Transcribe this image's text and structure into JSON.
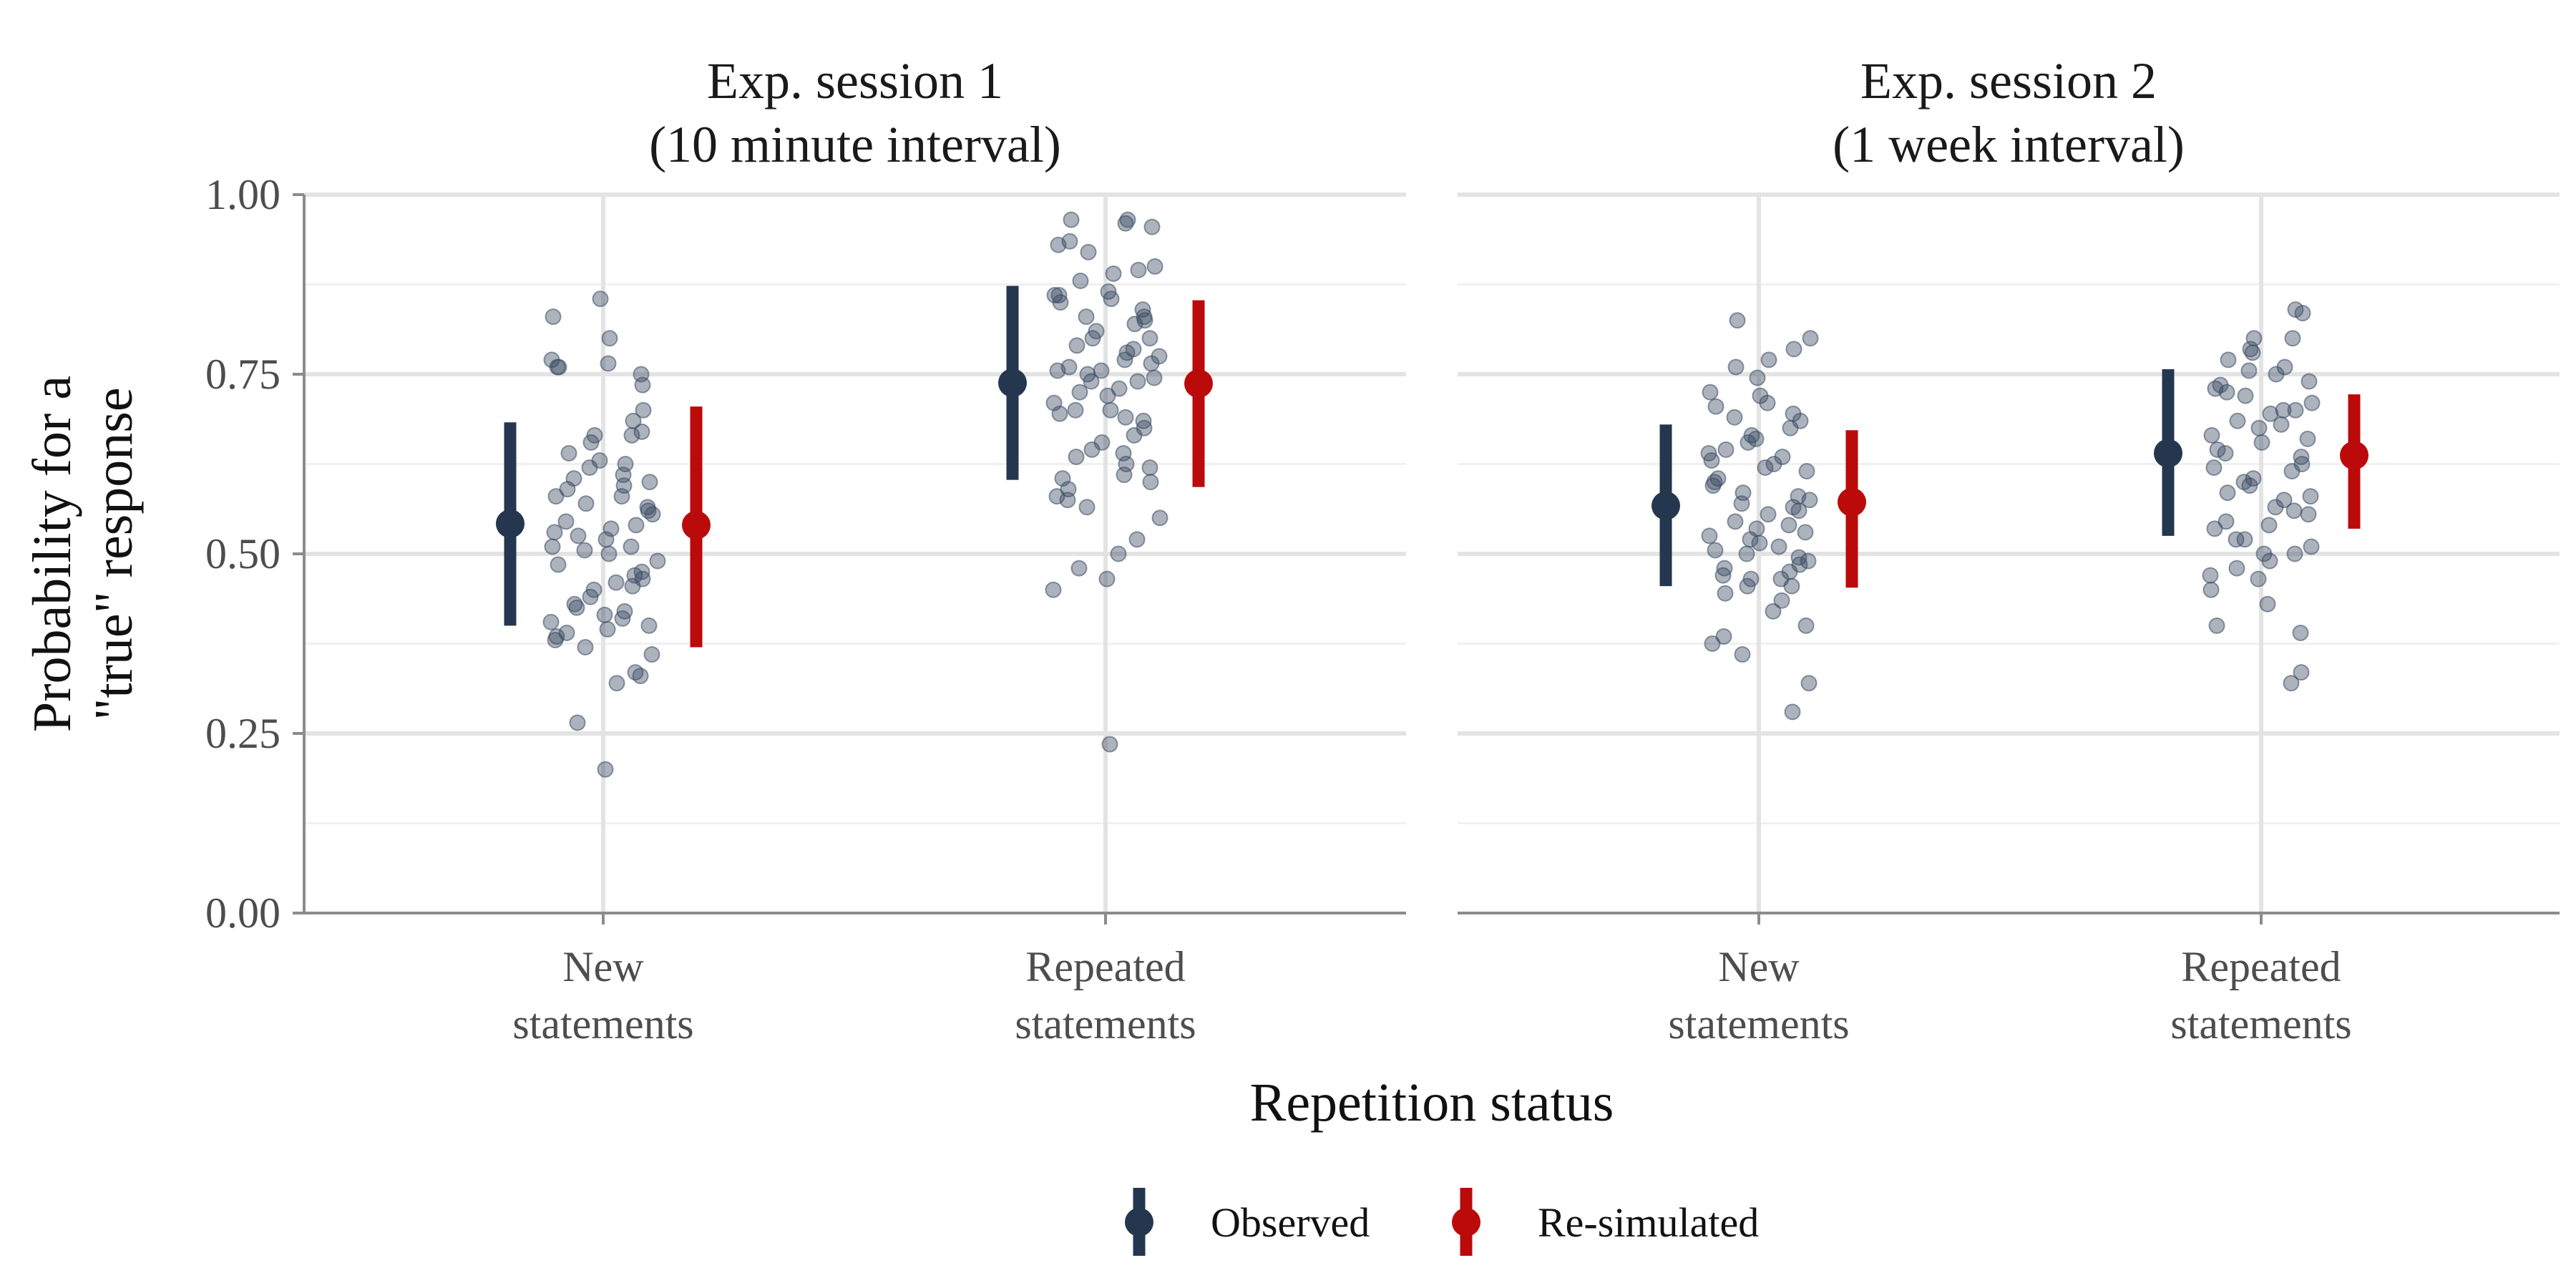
{
  "chart_data": {
    "type": "scatter",
    "subtype": "faceted jitter points with point-range summaries",
    "ylabel_lines": [
      "Probability for a",
      "\"true\" response"
    ],
    "xlabel": "Repetition status",
    "ylim": [
      0,
      1
    ],
    "yticks": [
      0,
      0.25,
      0.5,
      0.75,
      1
    ],
    "ytick_labels": [
      "0.00",
      "0.25",
      "0.50",
      "0.75",
      "1.00"
    ],
    "categories": [
      [
        "New",
        "statements"
      ],
      [
        "Repeated",
        "statements"
      ]
    ],
    "grid": true,
    "legend_position": "bottom",
    "colors": {
      "observed": "#25364f",
      "resimulated": "#bb0a0a",
      "points": "#3a4a62"
    },
    "legend": [
      {
        "key": "observed",
        "label": "Observed"
      },
      {
        "key": "resimulated",
        "label": "Re-simulated"
      }
    ],
    "panels": [
      {
        "title_lines": [
          "Exp. session 1",
          "(10 minute interval)"
        ],
        "summaries": [
          {
            "category": 0,
            "observed": {
              "mean": 0.542,
              "low": 0.4,
              "high": 0.683
            },
            "resimulated": {
              "mean": 0.54,
              "low": 0.37,
              "high": 0.705
            }
          },
          {
            "category": 1,
            "observed": {
              "mean": 0.738,
              "low": 0.603,
              "high": 0.873
            },
            "resimulated": {
              "mean": 0.737,
              "low": 0.593,
              "high": 0.853
            }
          }
        ],
        "points": [
          [
            0.855,
            0.83,
            0.8,
            0.76,
            0.735,
            0.7,
            0.685,
            0.665,
            0.655,
            0.64,
            0.625,
            0.61,
            0.6,
            0.59,
            0.58,
            0.57,
            0.555,
            0.54,
            0.535,
            0.525,
            0.52,
            0.51,
            0.5,
            0.485,
            0.475,
            0.465,
            0.455,
            0.45,
            0.44,
            0.43,
            0.42,
            0.41,
            0.4,
            0.39,
            0.38,
            0.37,
            0.36,
            0.335,
            0.32,
            0.265,
            0.2,
            0.77,
            0.765,
            0.76,
            0.75,
            0.67,
            0.665,
            0.63,
            0.62,
            0.605,
            0.595,
            0.58,
            0.56,
            0.545,
            0.53,
            0.505,
            0.49,
            0.47,
            0.46,
            0.425,
            0.415,
            0.405,
            0.395,
            0.385,
            0.33,
            0.565,
            0.51
          ],
          [
            0.965,
            0.965,
            0.96,
            0.955,
            0.935,
            0.93,
            0.92,
            0.9,
            0.895,
            0.89,
            0.88,
            0.865,
            0.86,
            0.855,
            0.85,
            0.83,
            0.825,
            0.82,
            0.81,
            0.8,
            0.79,
            0.78,
            0.77,
            0.765,
            0.76,
            0.755,
            0.75,
            0.745,
            0.74,
            0.73,
            0.725,
            0.72,
            0.71,
            0.7,
            0.695,
            0.685,
            0.675,
            0.665,
            0.655,
            0.645,
            0.635,
            0.625,
            0.61,
            0.6,
            0.59,
            0.58,
            0.565,
            0.55,
            0.52,
            0.5,
            0.48,
            0.465,
            0.45,
            0.235,
            0.86,
            0.84,
            0.8,
            0.785,
            0.755,
            0.74,
            0.7,
            0.69,
            0.64,
            0.62,
            0.575,
            0.605,
            0.83,
            0.775
          ]
        ]
      },
      {
        "title_lines": [
          "Exp. session 2",
          "(1 week interval)"
        ],
        "summaries": [
          {
            "category": 0,
            "observed": {
              "mean": 0.567,
              "low": 0.455,
              "high": 0.68
            },
            "resimulated": {
              "mean": 0.572,
              "low": 0.453,
              "high": 0.672
            }
          },
          {
            "category": 1,
            "observed": {
              "mean": 0.64,
              "low": 0.525,
              "high": 0.757
            },
            "resimulated": {
              "mean": 0.637,
              "low": 0.535,
              "high": 0.722
            }
          }
        ],
        "points": [
          [
            0.825,
            0.8,
            0.785,
            0.77,
            0.76,
            0.745,
            0.725,
            0.72,
            0.705,
            0.695,
            0.685,
            0.675,
            0.665,
            0.655,
            0.645,
            0.635,
            0.625,
            0.615,
            0.605,
            0.595,
            0.585,
            0.575,
            0.565,
            0.555,
            0.545,
            0.535,
            0.525,
            0.515,
            0.505,
            0.495,
            0.485,
            0.475,
            0.465,
            0.455,
            0.445,
            0.435,
            0.42,
            0.4,
            0.385,
            0.375,
            0.36,
            0.32,
            0.28,
            0.71,
            0.69,
            0.66,
            0.64,
            0.62,
            0.6,
            0.58,
            0.56,
            0.54,
            0.52,
            0.5,
            0.48,
            0.465,
            0.51,
            0.53,
            0.47,
            0.63,
            0.57,
            0.49,
            0.455
          ],
          [
            0.84,
            0.835,
            0.8,
            0.8,
            0.785,
            0.77,
            0.76,
            0.75,
            0.74,
            0.735,
            0.73,
            0.72,
            0.71,
            0.7,
            0.695,
            0.685,
            0.675,
            0.665,
            0.655,
            0.645,
            0.635,
            0.625,
            0.615,
            0.605,
            0.595,
            0.585,
            0.575,
            0.565,
            0.555,
            0.545,
            0.535,
            0.52,
            0.51,
            0.5,
            0.49,
            0.48,
            0.465,
            0.45,
            0.43,
            0.4,
            0.39,
            0.335,
            0.32,
            0.78,
            0.755,
            0.725,
            0.7,
            0.68,
            0.66,
            0.64,
            0.62,
            0.6,
            0.58,
            0.56,
            0.54,
            0.52,
            0.5,
            0.47
          ]
        ]
      }
    ]
  }
}
